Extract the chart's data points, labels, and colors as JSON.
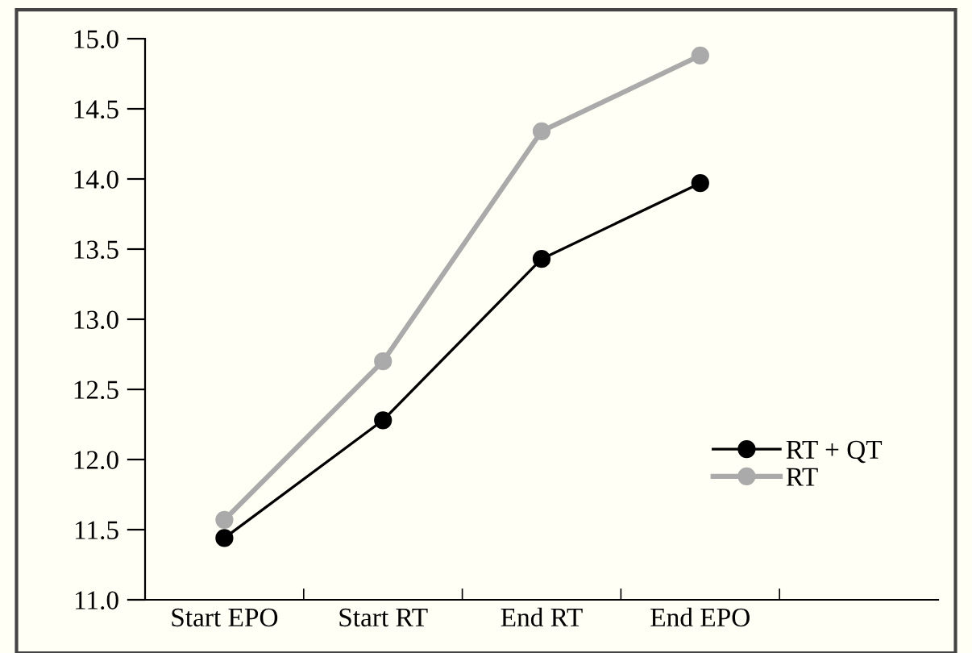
{
  "chart_data": {
    "type": "line",
    "categories": [
      "Start EPO",
      "Start RT",
      "End RT",
      "End EPO",
      null
    ],
    "series": [
      {
        "name": "RT + QT",
        "color": "#000000",
        "values": [
          11.44,
          12.28,
          13.43,
          13.97,
          null
        ]
      },
      {
        "name": "RT",
        "color": "#aaaaaa",
        "values": [
          11.57,
          12.7,
          14.34,
          14.88,
          null
        ]
      }
    ],
    "ylim": [
      11.0,
      15.0
    ],
    "yticks": [
      {
        "value": 11.0,
        "label": "11.0"
      },
      {
        "value": 11.5,
        "label": "11.5"
      },
      {
        "value": 12.0,
        "label": "12.0"
      },
      {
        "value": 12.5,
        "label": "12.5"
      },
      {
        "value": 13.0,
        "label": "13.0"
      },
      {
        "value": 13.5,
        "label": "13.5"
      },
      {
        "value": 14.0,
        "label": "14.0"
      },
      {
        "value": 14.5,
        "label": "14.5"
      },
      {
        "value": 15.0,
        "label": "15.0"
      }
    ],
    "grid": false,
    "legend": "bottom right",
    "marker": "circle",
    "line_style": "solid"
  }
}
